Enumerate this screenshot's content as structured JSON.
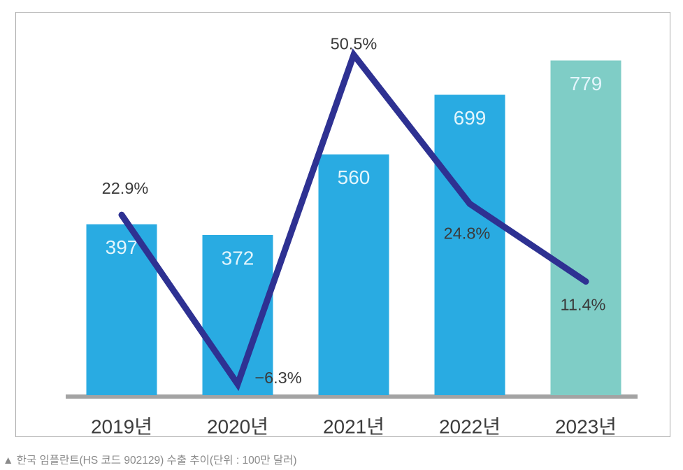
{
  "caption": {
    "text": "▲ 한국 임플란트(HS 코드 902129) 수출 추이(단위 : 100만 달러)"
  },
  "chart_data": {
    "type": "bar",
    "title": "한국 임플란트(HS 코드 902129) 수출 추이",
    "unit_note": "단위 : 100만 달러",
    "categories": [
      "2019년",
      "2020년",
      "2021년",
      "2022년",
      "2023년"
    ],
    "series": [
      {
        "name": "export-value-bars",
        "type": "bar",
        "values": [
          397,
          372,
          560,
          699,
          779
        ],
        "value_labels": [
          "397",
          "372",
          "560",
          "699",
          "779"
        ],
        "bar_colors": [
          "#29abe2",
          "#29abe2",
          "#29abe2",
          "#29abe2",
          "#7fcdc6"
        ]
      },
      {
        "name": "growth-rate-line",
        "type": "line",
        "values": [
          22.9,
          -6.3,
          50.5,
          24.8,
          11.4
        ],
        "value_labels": [
          "22.9%",
          "−6.3%",
          "50.5%",
          "24.8%",
          "11.4%"
        ],
        "color": "#2e3192"
      }
    ],
    "layout_hints": {
      "grid": "off",
      "legend": "none",
      "baseline_axis_color": "#a3a3a3",
      "bar_value_text_color": "#e3f5fc",
      "rate_label_text_color": "#3a3a3a",
      "x_label_text_color": "#3d3d3d"
    }
  }
}
